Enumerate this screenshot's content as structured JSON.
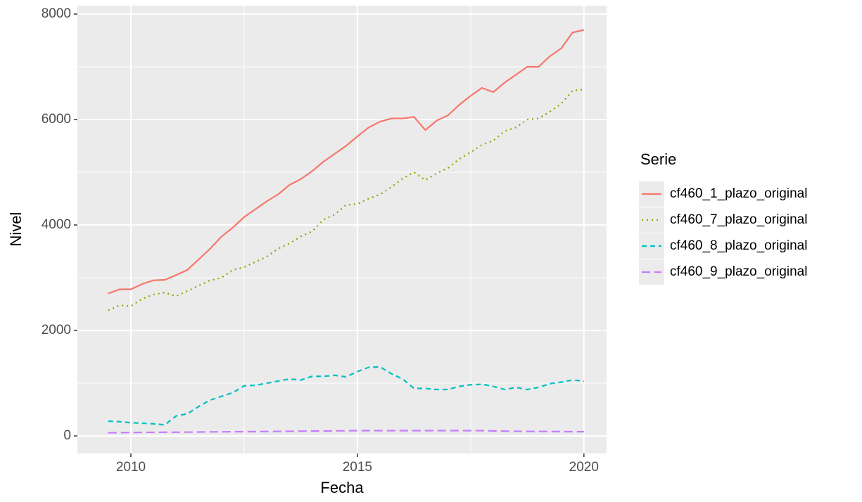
{
  "chart_data": {
    "type": "line",
    "x_label": "Fecha",
    "y_label": "Nivel",
    "legend_title": "Serie",
    "legend": "right",
    "grid": true,
    "xlim": [
      2008.82,
      2020.5
    ],
    "xticks": [
      2010,
      2015,
      2020
    ],
    "ylim": [
      -333,
      8160
    ],
    "yticks": [
      0,
      2000,
      4000,
      6000,
      8000
    ],
    "x": [
      2009.5,
      2009.75,
      2010,
      2010.25,
      2010.5,
      2010.75,
      2011,
      2011.25,
      2011.5,
      2011.75,
      2012,
      2012.25,
      2012.5,
      2012.75,
      2013,
      2013.25,
      2013.5,
      2013.75,
      2014,
      2014.25,
      2014.5,
      2014.75,
      2015,
      2015.25,
      2015.5,
      2015.75,
      2016,
      2016.25,
      2016.5,
      2016.75,
      2017,
      2017.25,
      2017.5,
      2017.75,
      2018,
      2018.25,
      2018.5,
      2018.75,
      2019,
      2019.25,
      2019.5,
      2019.75,
      2020
    ],
    "series": [
      {
        "name": "cf460_1_plazo_original",
        "color": "#F8766D",
        "dash": "solid",
        "values": [
          2700,
          2780,
          2780,
          2880,
          2950,
          2960,
          3050,
          3150,
          3350,
          3550,
          3780,
          3950,
          4150,
          4300,
          4450,
          4580,
          4760,
          4870,
          5020,
          5200,
          5350,
          5500,
          5680,
          5850,
          5960,
          6020,
          6020,
          6050,
          5800,
          5980,
          6080,
          6280,
          6450,
          6600,
          6520,
          6700,
          6850,
          7000,
          7000,
          7200,
          7350,
          7650,
          7700
        ]
      },
      {
        "name": "cf460_7_plazo_original",
        "color": "#7CAE00",
        "dash": "dotted",
        "values": [
          2380,
          2480,
          2460,
          2600,
          2680,
          2720,
          2650,
          2750,
          2850,
          2950,
          3000,
          3150,
          3200,
          3300,
          3400,
          3550,
          3650,
          3780,
          3880,
          4100,
          4200,
          4380,
          4400,
          4500,
          4580,
          4720,
          4880,
          5000,
          4850,
          4980,
          5080,
          5250,
          5380,
          5520,
          5600,
          5780,
          5850,
          6000,
          6020,
          6150,
          6300,
          6550,
          6570
        ]
      },
      {
        "name": "cf460_8_plazo_original",
        "color": "#00BFC4",
        "dash": "dashed",
        "values": [
          280,
          270,
          250,
          240,
          230,
          210,
          380,
          420,
          560,
          680,
          750,
          820,
          950,
          960,
          1000,
          1040,
          1080,
          1060,
          1130,
          1130,
          1150,
          1120,
          1220,
          1300,
          1310,
          1180,
          1080,
          900,
          900,
          880,
          880,
          940,
          970,
          980,
          940,
          880,
          920,
          880,
          920,
          990,
          1020,
          1060,
          1040
        ]
      },
      {
        "name": "cf460_9_plazo_original",
        "color": "#C77CFF",
        "dash": "longdash",
        "values": [
          60,
          62,
          65,
          67,
          68,
          70,
          70,
          72,
          74,
          76,
          78,
          80,
          80,
          82,
          84,
          86,
          88,
          90,
          92,
          94,
          96,
          98,
          100,
          100,
          100,
          100,
          100,
          100,
          100,
          100,
          100,
          100,
          100,
          100,
          95,
          90,
          88,
          86,
          85,
          84,
          82,
          80,
          80
        ]
      }
    ]
  }
}
